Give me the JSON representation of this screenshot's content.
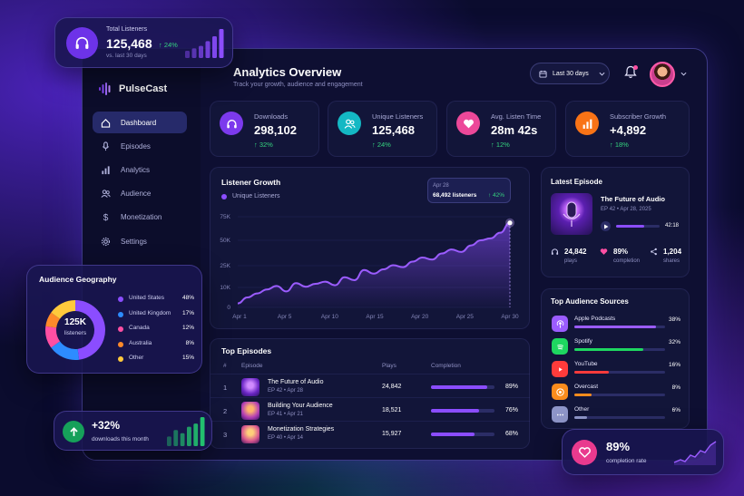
{
  "brand": {
    "name": "PulseCast"
  },
  "header": {
    "title": "Analytics Overview",
    "subtitle": "Track your growth, audience and engagement",
    "date_range": "Last 30 days"
  },
  "nav": [
    {
      "label": "Dashboard",
      "icon": "home-icon"
    },
    {
      "label": "Episodes",
      "icon": "microphone-icon"
    },
    {
      "label": "Analytics",
      "icon": "bar-chart-icon"
    },
    {
      "label": "Audience",
      "icon": "users-icon"
    },
    {
      "label": "Monetization",
      "icon": "dollar-icon"
    },
    {
      "label": "Settings",
      "icon": "gear-icon"
    }
  ],
  "kpis": [
    {
      "label": "Downloads",
      "value": "298,102",
      "change": "↑ 32%",
      "color": "#7c3aed",
      "icon": "headphones-icon"
    },
    {
      "label": "Unique Listeners",
      "value": "125,468",
      "change": "↑ 24%",
      "color": "#14b8c4",
      "icon": "users-icon"
    },
    {
      "label": "Avg. Listen Time",
      "value": "28m 42s",
      "change": "↑ 12%",
      "color": "#ec4899",
      "icon": "heart-icon"
    },
    {
      "label": "Subscriber Growth",
      "value": "+4,892",
      "change": "↑ 18%",
      "color": "#f97316",
      "icon": "bar-chart-icon"
    }
  ],
  "chart_data": {
    "type": "area",
    "title": "Listener Growth",
    "series": [
      {
        "name": "Unique Listeners",
        "color": "#8b4dff"
      }
    ],
    "x": [
      "Apr 1",
      "Apr 1.5",
      "Apr 2",
      "Apr 3",
      "Apr 4",
      "Apr 5",
      "Apr 6",
      "Apr 7",
      "Apr 8",
      "Apr 9",
      "Apr 10",
      "Apr 11",
      "Apr 12",
      "Apr 13",
      "Apr 14",
      "Apr 15",
      "Apr 16",
      "Apr 17",
      "Apr 18",
      "Apr 19",
      "Apr 20",
      "Apr 21",
      "Apr 22",
      "Apr 23",
      "Apr 24",
      "Apr 25",
      "Apr 26",
      "Apr 27",
      "Apr 28"
    ],
    "values": [
      2000,
      5000,
      7000,
      9000,
      11000,
      8000,
      13000,
      10500,
      12500,
      14000,
      11500,
      17000,
      15000,
      22000,
      19500,
      22500,
      25500,
      24000,
      29000,
      33000,
      31000,
      37000,
      41000,
      38500,
      45000,
      50000,
      52000,
      58000,
      68492
    ],
    "x_ticks": [
      "Apr 1",
      "Apr 5",
      "Apr 10",
      "Apr 15",
      "Apr 20",
      "Apr 25",
      "Apr 30"
    ],
    "y_ticks": [
      "0",
      "10K",
      "25K",
      "50K",
      "75K"
    ],
    "ylim": [
      0,
      75000
    ],
    "tooltip": {
      "date": "Apr 28",
      "value": "68,492 listeners",
      "change": "↑ 42%"
    }
  },
  "top_total": {
    "label": "Total Listeners",
    "value": "125,468",
    "change": "↑ 24%",
    "caption": "vs. last 30 days",
    "spark": [
      3,
      4,
      5,
      7,
      9,
      12
    ]
  },
  "latest_episode": {
    "heading": "Latest Episode",
    "title": "The Future of Audio",
    "meta": "EP 42  •  Apr 28, 2025",
    "duration": "42:18",
    "progress": 0.65,
    "stats": [
      {
        "value": "24,842",
        "label": "plays",
        "icon": "headphones-icon"
      },
      {
        "value": "89%",
        "label": "completion",
        "icon": "heart-icon"
      },
      {
        "value": "1,204",
        "label": "shares",
        "icon": "share-icon"
      }
    ]
  },
  "top_episodes": {
    "heading": "Top Episodes",
    "columns": [
      "#",
      "Episode",
      "Plays",
      "Completion"
    ],
    "rows": [
      {
        "num": "1",
        "title": "The Future of Audio",
        "meta": "EP 42  •  Apr 28",
        "plays": "24,842",
        "completion": "89%",
        "pct": 0.89
      },
      {
        "num": "2",
        "title": "Building Your Audience",
        "meta": "EP 41  •  Apr 21",
        "plays": "18,521",
        "completion": "76%",
        "pct": 0.76
      },
      {
        "num": "3",
        "title": "Monetization Strategies",
        "meta": "EP 40  •  Apr 14",
        "plays": "15,927",
        "completion": "68%",
        "pct": 0.68
      }
    ]
  },
  "sources": {
    "heading": "Top Audience Sources",
    "items": [
      {
        "name": "Apple Podcasts",
        "value": "38%",
        "pct": 0.38,
        "color": "#9b5cff",
        "icon": "podcast-icon"
      },
      {
        "name": "Spotify",
        "value": "32%",
        "pct": 0.32,
        "color": "#1ed760",
        "icon": "spotify-icon"
      },
      {
        "name": "YouTube",
        "value": "16%",
        "pct": 0.16,
        "color": "#ff3b3b",
        "icon": "youtube-icon"
      },
      {
        "name": "Overcast",
        "value": "8%",
        "pct": 0.08,
        "color": "#fb8c1d",
        "icon": "overcast-icon"
      },
      {
        "name": "Other",
        "value": "6%",
        "pct": 0.06,
        "color": "#8e95c8",
        "icon": "more-icon"
      }
    ]
  },
  "geo": {
    "heading": "Audience Geography",
    "center_value": "125K",
    "center_label": "listeners",
    "items": [
      {
        "name": "United States",
        "value": "48%",
        "pct": 48,
        "color": "#8b4dff"
      },
      {
        "name": "United Kingdom",
        "value": "17%",
        "pct": 17,
        "color": "#2d8cff"
      },
      {
        "name": "Canada",
        "value": "12%",
        "pct": 12,
        "color": "#ff4fa3"
      },
      {
        "name": "Australia",
        "value": "8%",
        "pct": 8,
        "color": "#ff8a2a"
      },
      {
        "name": "Other",
        "value": "15%",
        "pct": 15,
        "color": "#ffc93c"
      }
    ]
  },
  "downloads_card": {
    "value": "+32%",
    "label": "downloads this month",
    "spark": [
      3,
      5,
      4,
      6,
      7,
      9
    ]
  },
  "completion_card": {
    "value": "89%",
    "label": "completion rate"
  }
}
